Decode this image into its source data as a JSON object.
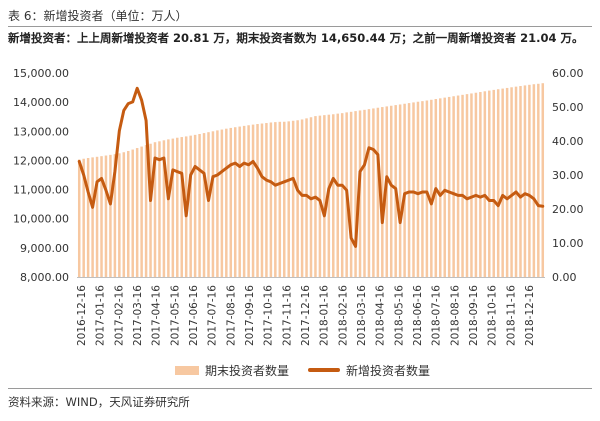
{
  "header": {
    "title": "表 6：新增投资者（单位：万人）",
    "subtitle": "新增投资者：上上周新增投资者 20.81 万，期末投资者数为 14,650.44 万；之前一周新增投资者 21.04 万。"
  },
  "footer": {
    "source": "资料来源：WIND，天风证券研究所"
  },
  "colors": {
    "bar": "#f7c8a1",
    "line": "#c55b11",
    "accent": "#c55b11"
  },
  "chart_data": {
    "type": "bar+line",
    "legend_position": "bottom",
    "grid": false,
    "x_tick_labels": [
      "2016-12-16",
      "2017-01-16",
      "2017-02-16",
      "2017-03-16",
      "2017-04-16",
      "2017-05-16",
      "2017-06-16",
      "2017-07-16",
      "2017-08-16",
      "2017-09-16",
      "2017-10-16",
      "2017-11-16",
      "2017-12-16",
      "2018-01-16",
      "2018-02-16",
      "2018-03-16",
      "2018-04-16",
      "2018-05-16",
      "2018-06-16",
      "2018-07-16",
      "2018-08-16",
      "2018-09-16",
      "2018-10-16",
      "2018-11-16",
      "2018-12-16"
    ],
    "y_left": {
      "min": 8000,
      "max": 15000,
      "ticks": [
        "8,000.00",
        "9,000.00",
        "10,000.00",
        "11,000.00",
        "12,000.00",
        "13,000.00",
        "14,000.00",
        "15,000.00"
      ]
    },
    "y_right": {
      "min": 0,
      "max": 60,
      "ticks": [
        "0.00",
        "10.00",
        "20.00",
        "30.00",
        "40.00",
        "50.00",
        "60.00"
      ]
    },
    "series": [
      {
        "name": "期末投资者数量",
        "type": "bar",
        "axis": "left",
        "values": [
          12030,
          12058,
          12083,
          12105,
          12125,
          12146,
          12168,
          12191,
          12214,
          12244,
          12281,
          12324,
          12373,
          12425,
          12476,
          12527,
          12573,
          12625,
          12656,
          12691,
          12723,
          12749,
          12779,
          12802,
          12824,
          12851,
          12877,
          12907,
          12938,
          12969,
          13000,
          13031,
          13060,
          13089,
          13115,
          13139,
          13162,
          13185,
          13207,
          13229,
          13249,
          13266,
          13283,
          13302,
          13315,
          13325,
          13327,
          13341,
          13361,
          13378,
          13406,
          13444,
          13482,
          13521,
          13537,
          13554,
          13569,
          13584,
          13606,
          13622,
          13649,
          13668,
          13692,
          13715,
          13736,
          13760,
          13784,
          13808,
          13831,
          13854,
          13876,
          13899,
          13921,
          13945,
          13967,
          13991,
          14014,
          14034,
          14056,
          14081,
          14107,
          14130,
          14155,
          14179,
          14203,
          14227,
          14251,
          14275,
          14299,
          14323,
          14347,
          14372,
          14396,
          14420,
          14443,
          14465,
          14487,
          14510,
          14532,
          14553,
          14574,
          14595,
          14615,
          14630,
          14650
        ]
      },
      {
        "name": "新增投资者数量",
        "type": "line",
        "axis": "right",
        "values": [
          34,
          30,
          25,
          20.5,
          28,
          29,
          25.5,
          21.5,
          31,
          43,
          49,
          51,
          51.5,
          55.5,
          52,
          46,
          22.5,
          35,
          34.5,
          35,
          23,
          31.5,
          31,
          30.5,
          18,
          30,
          32.5,
          31.5,
          30.5,
          22.5,
          29.5,
          30,
          31,
          32,
          33,
          33.5,
          32.5,
          33.5,
          33,
          34,
          32,
          29.5,
          28.5,
          28,
          27,
          27.5,
          28,
          28.5,
          29,
          25.5,
          24,
          24,
          23,
          23.5,
          22.5,
          18,
          26,
          29,
          27,
          27,
          25.5,
          11.5,
          9,
          31,
          33,
          38,
          37.5,
          36,
          16,
          29.5,
          27,
          26,
          16,
          24.5,
          25,
          25,
          24.5,
          25,
          25,
          21.5,
          26,
          24,
          25.5,
          25,
          24.5,
          24,
          24,
          23,
          23.5,
          24,
          23.5,
          24,
          22.5,
          22.5,
          21,
          24,
          23,
          24,
          25,
          23.5,
          24.5,
          24,
          23,
          21,
          20.8
        ]
      }
    ]
  }
}
